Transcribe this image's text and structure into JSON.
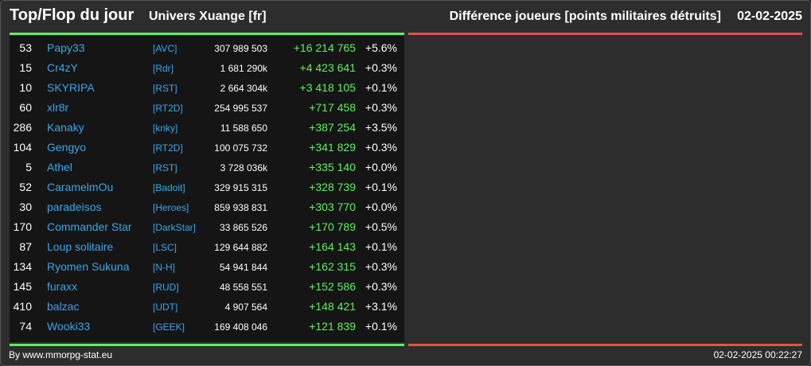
{
  "header": {
    "title": "Top/Flop du jour",
    "universe": "Univers Xuange [fr]",
    "metric": "Différence joueurs [points militaires détruits]",
    "date": "02-02-2025"
  },
  "rows": [
    {
      "rank": "53",
      "player": "Papy33",
      "alliance": "[AVC]",
      "score": "307 989 503",
      "diff": "+16 214 765",
      "pct": "+5.6%"
    },
    {
      "rank": "15",
      "player": "Cr4zY",
      "alliance": "[Rdr]",
      "score": "1 681 290k",
      "diff": "+4 423 641",
      "pct": "+0.3%"
    },
    {
      "rank": "10",
      "player": "SKYRIPA",
      "alliance": "[RST]",
      "score": "2 664 304k",
      "diff": "+3 418 105",
      "pct": "+0.1%"
    },
    {
      "rank": "60",
      "player": "xlr8r",
      "alliance": "[RT2D]",
      "score": "254 995 537",
      "diff": "+717 458",
      "pct": "+0.3%"
    },
    {
      "rank": "286",
      "player": "Kanaky",
      "alliance": "[knky]",
      "score": "11 588 650",
      "diff": "+387 254",
      "pct": "+3.5%"
    },
    {
      "rank": "104",
      "player": "Gengyo",
      "alliance": "[RT2D]",
      "score": "100 075 732",
      "diff": "+341 829",
      "pct": "+0.3%"
    },
    {
      "rank": "5",
      "player": "Athel",
      "alliance": "[RST]",
      "score": "3 728 036k",
      "diff": "+335 140",
      "pct": "+0.0%"
    },
    {
      "rank": "52",
      "player": "CaramelmOu",
      "alliance": "[Badoit]",
      "score": "329 915 315",
      "diff": "+328 739",
      "pct": "+0.1%"
    },
    {
      "rank": "30",
      "player": "paradeisos",
      "alliance": "[Heroes]",
      "score": "859 938 831",
      "diff": "+303 770",
      "pct": "+0.0%"
    },
    {
      "rank": "170",
      "player": "Commander Star",
      "alliance": "[DarkStar]",
      "score": "33 865 526",
      "diff": "+170 789",
      "pct": "+0.5%"
    },
    {
      "rank": "87",
      "player": "Loup solitaire",
      "alliance": "[LSC]",
      "score": "129 644 882",
      "diff": "+164 143",
      "pct": "+0.1%"
    },
    {
      "rank": "134",
      "player": "Ryomen Sukuna",
      "alliance": "[N-H]",
      "score": "54 941 844",
      "diff": "+162 315",
      "pct": "+0.3%"
    },
    {
      "rank": "145",
      "player": "furaxx",
      "alliance": "[RUD]",
      "score": "48 558 551",
      "diff": "+152 586",
      "pct": "+0.3%"
    },
    {
      "rank": "410",
      "player": "balzac",
      "alliance": "[UDT]",
      "score": "4 907 564",
      "diff": "+148 421",
      "pct": "+3.1%"
    },
    {
      "rank": "74",
      "player": "Wooki33",
      "alliance": "[GEEK]",
      "score": "169 408 046",
      "diff": "+121 839",
      "pct": "+0.1%"
    }
  ],
  "footer": {
    "credit": "By www.mmorpg-stat.eu",
    "timestamp": "02-02-2025 00:22:27"
  },
  "colors": {
    "top_accent": "#5ff05f",
    "flop_accent": "#e0524a",
    "link": "#3aa6e8"
  }
}
